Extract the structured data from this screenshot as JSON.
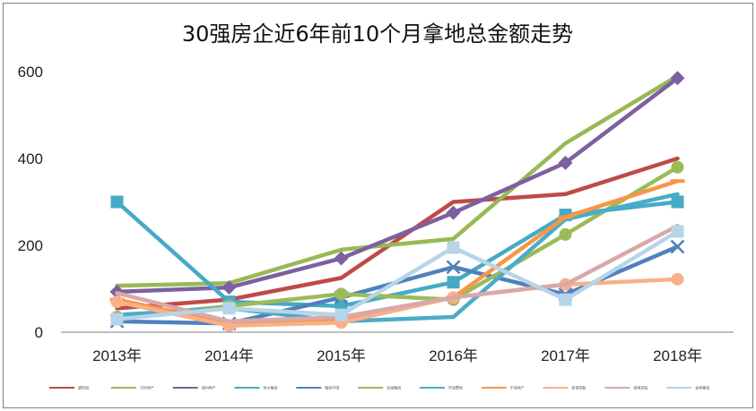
{
  "chart_data": {
    "type": "line",
    "title": "30强房企近6年前10个月拿地总金额走势",
    "categories": [
      "2013年",
      "2014年",
      "2015年",
      "2016年",
      "2017年",
      "2018年"
    ],
    "ylim": [
      0,
      600
    ],
    "yticks": [
      0,
      200,
      400,
      600
    ],
    "grid": false,
    "legend_position": "bottom",
    "series": [
      {
        "name": "碧桂园",
        "color": "#be4b48",
        "marker": "none",
        "values": [
          55,
          75,
          125,
          300,
          318,
          400
        ]
      },
      {
        "name": "万科地产",
        "color": "#98b954",
        "marker": "none",
        "values": [
          107,
          113,
          190,
          215,
          435,
          590
        ]
      },
      {
        "name": "保利地产",
        "color": "#7d60a0",
        "marker": "diamond",
        "values": [
          93,
          103,
          170,
          275,
          390,
          585
        ]
      },
      {
        "name": "恒大集团",
        "color": "#46aac5",
        "marker": "square",
        "values": [
          300,
          70,
          60,
          115,
          270,
          300
        ]
      },
      {
        "name": "融创中国",
        "color": "#4f81bd",
        "marker": "x",
        "values": [
          25,
          20,
          80,
          150,
          87,
          197
        ]
      },
      {
        "name": "龙湖集团",
        "color": "#9bbb59",
        "marker": "circle",
        "values": [
          35,
          60,
          88,
          75,
          225,
          380
        ]
      },
      {
        "name": "华润置地",
        "color": "#4bacc6",
        "marker": "none",
        "values": [
          40,
          55,
          25,
          35,
          260,
          318
        ]
      },
      {
        "name": "中海地产",
        "color": "#f79646",
        "marker": "dash",
        "values": [
          75,
          20,
          25,
          80,
          265,
          348
        ]
      },
      {
        "name": "新城控股",
        "color": "#f9b08a",
        "marker": "circle",
        "values": [
          70,
          15,
          22,
          80,
          110,
          122
        ]
      },
      {
        "name": "绿地控股",
        "color": "#d9a8a8",
        "marker": "none",
        "values": [
          90,
          25,
          35,
          80,
          110,
          245
        ]
      },
      {
        "name": "金地集团",
        "color": "#b7d4e8",
        "marker": "square",
        "values": [
          30,
          55,
          40,
          195,
          75,
          232
        ]
      }
    ]
  }
}
